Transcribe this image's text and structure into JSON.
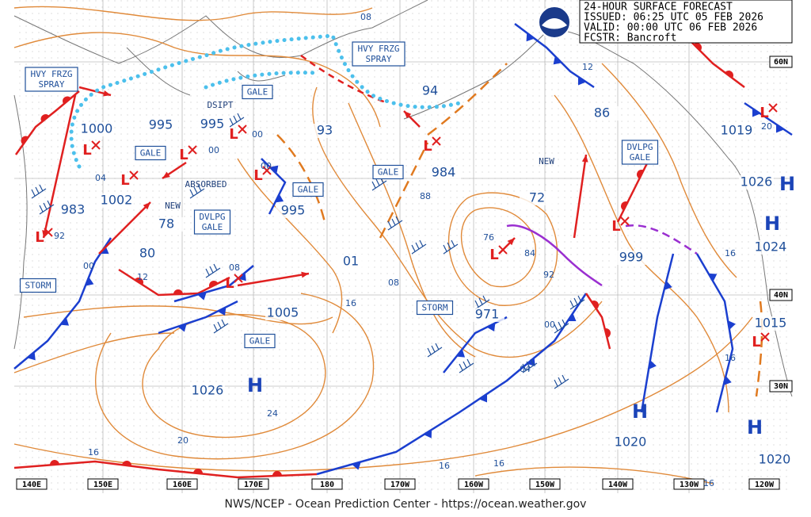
{
  "header": {
    "title": "24-HOUR SURFACE FORECAST",
    "issued": "ISSUED: 06:25 UTC 05 FEB 2026",
    "valid": "VALID:  00:00 UTC 06 FEB 2026",
    "forecaster": "FCSTR:  Bancroft"
  },
  "pressure_labels": [
    "1000",
    "995",
    "995",
    "1002",
    "983",
    "78",
    "80",
    "995",
    "93",
    "984",
    "94",
    "86",
    "72",
    "1019",
    "1026",
    "1024",
    "999",
    "1015",
    "971",
    "1005",
    "01",
    "1026",
    "1020",
    "1020"
  ],
  "highs": [
    "H",
    "H",
    "H",
    "H",
    "H"
  ],
  "lows": [
    "L",
    "L",
    "L",
    "L",
    "L",
    "L",
    "L",
    "L",
    "L",
    "L",
    "L",
    "L"
  ],
  "warnings": [
    [
      "HVY FRZG",
      "SPRAY"
    ],
    [
      "GALE"
    ],
    [
      "GALE"
    ],
    [
      "GALE"
    ],
    [
      "DVLPG",
      "GALE"
    ],
    [
      "STORM"
    ],
    [
      "HVY FRZG",
      "SPRAY"
    ],
    [
      "GALE"
    ],
    [
      "STORM"
    ],
    [
      "GALE"
    ],
    [
      "DVLPG",
      "GALE"
    ]
  ],
  "notes": [
    "DSIPT",
    "ABSORBED",
    "NEW",
    "NEW"
  ],
  "isobar_labels": [
    "08",
    "12",
    "00",
    "00",
    "00",
    "04",
    "92",
    "00",
    "12",
    "08",
    "16",
    "08",
    "88",
    "76",
    "84",
    "92",
    "00",
    "04",
    "24",
    "20",
    "16",
    "16",
    "16",
    "16",
    "16",
    "16",
    "20"
  ],
  "longitude_labels": [
    "140E",
    "150E",
    "160E",
    "170E",
    "180",
    "170W",
    "160W",
    "150W",
    "140W",
    "130W",
    "120W"
  ],
  "latitude_labels": [
    "60N",
    "40N",
    "30N"
  ],
  "footer": "NWS/NCEP - Ocean Prediction Center - https://ocean.weather.gov"
}
